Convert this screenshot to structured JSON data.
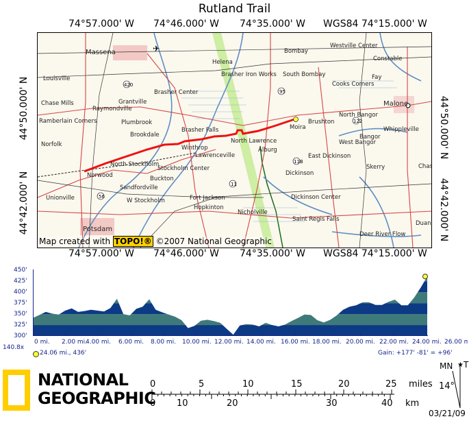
{
  "title": "Rutland Trail",
  "top_coords": [
    "74°57.000' W",
    "74°46.000' W",
    "74°35.000' W",
    "WGS84 74°15.000' W"
  ],
  "bottom_coords": [
    "74°57.000' W",
    "74°46.000' W",
    "74°35.000' W",
    "WGS84 74°15.000' W"
  ],
  "left_coords": [
    "44°50.000' N",
    "44°42.000' N"
  ],
  "right_coords": [
    "44°50.000' N",
    "44°42.000' N"
  ],
  "map": {
    "credit_prefix": "Map created with",
    "credit_brand": "TOPO!®",
    "credit_suffix": "©2007 National Geographic",
    "places": [
      "Massena",
      "Louisville",
      "Helena",
      "Bombay",
      "Westville Center",
      "Constable",
      "Brasher Iron Works",
      "South Bombay",
      "Fay",
      "Brasher Center",
      "Cooks Corners",
      "Chase Mills",
      "Grantville",
      "Raymondville",
      "Malone",
      "Ramberlain Corners",
      "Plumbrook",
      "Brasher Falls",
      "Moira",
      "Brushton",
      "North Bangor",
      "Brookdale",
      "Whippleville",
      "Norfolk",
      "Winthrop",
      "North Lawrence",
      "Alburg",
      "West Bangor",
      "Bangor",
      "North Stockholm",
      "Lawrenceville",
      "East Dickinson",
      "Skerry",
      "Norwood",
      "Stockholm Center",
      "Dickinson",
      "Buckton",
      "Sandfordville",
      "Unionville",
      "W Stockholm",
      "Fort Jackson",
      "Dickinson Center",
      "Hopkinton",
      "Nicholville",
      "Saint Regis Falls",
      "Potsdam",
      "Deer River Flow",
      "Chas",
      "Duane"
    ]
  },
  "profile": {
    "y_ticks": [
      "450'",
      "425'",
      "400'",
      "375'",
      "350'",
      "325'",
      "300'"
    ],
    "x_ticks": [
      "0 mi.",
      "2.00 mi.",
      "4.00 mi.",
      "6.00 mi.",
      "8.00 mi.",
      "10.00 mi.",
      "12.00 mi.",
      "14.00 mi.",
      "16.00 mi.",
      "18.00 mi.",
      "20.00 mi.",
      "22.00 mi.",
      "24.00 mi.",
      "26.00 mi."
    ],
    "scale_label": "140.8x",
    "cursor_label": "24.06 mi., 436'",
    "gain_label": "Gain: +177' -81' = +96'",
    "colors": {
      "dark": "#0d3a84",
      "mid": "#3f7a7a",
      "line": "#13238a"
    },
    "elevation_ft": [
      341,
      348,
      355,
      351,
      349,
      358,
      363,
      355,
      357,
      360,
      358,
      356,
      364,
      385,
      350,
      347,
      362,
      367,
      384,
      360,
      354,
      349,
      344,
      336,
      318,
      323,
      335,
      337,
      334,
      330,
      316,
      303,
      324,
      327,
      326,
      322,
      330,
      325,
      322,
      326,
      334,
      341,
      349,
      348,
      336,
      331,
      337,
      347,
      360,
      367,
      370,
      377,
      377,
      371,
      371,
      378,
      383,
      370,
      370,
      388,
      411,
      436
    ]
  },
  "logo": {
    "line1": "NATIONAL",
    "line2": "GEOGRAPHIC"
  },
  "scale": {
    "miles_ticks": [
      "0",
      "5",
      "10",
      "15",
      "20",
      "25"
    ],
    "km_ticks": [
      "0",
      "10",
      "20",
      "30",
      "40"
    ],
    "miles_label": "miles",
    "km_label": "km",
    "declination": "14°",
    "mn_label": "MN",
    "tn_label": "TN",
    "date": "03/21/09"
  }
}
